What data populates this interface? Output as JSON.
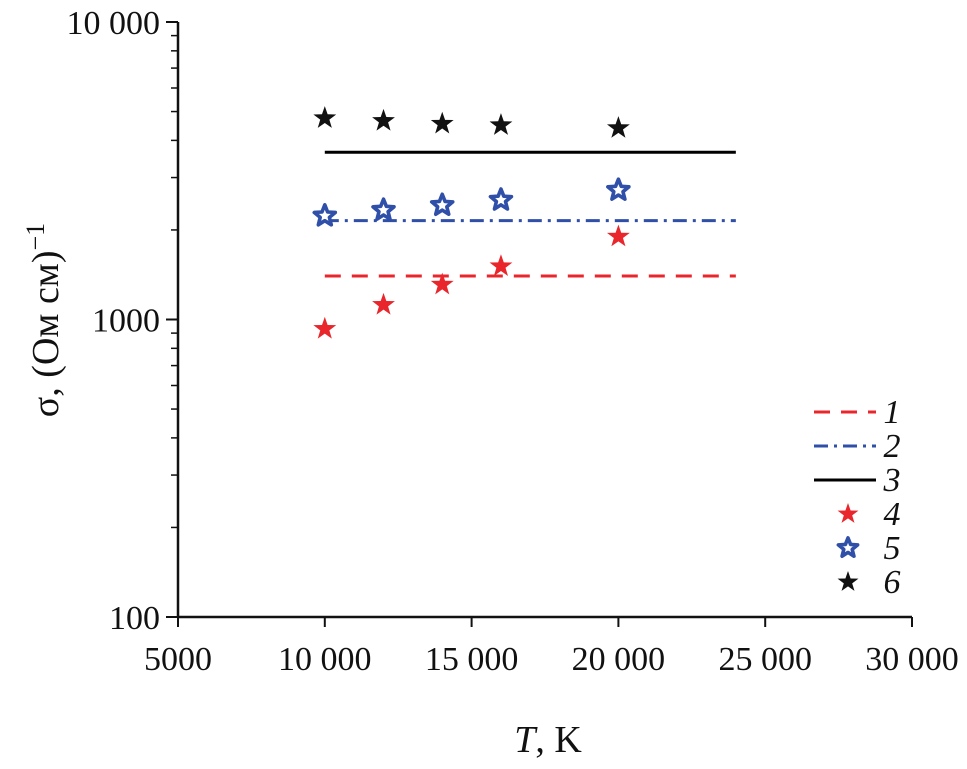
{
  "chart_data": {
    "type": "scatter",
    "xlabel_italic": "T",
    "xlabel_rest": ", K",
    "ylabel": "σ, (Ом см)",
    "ylabel_sup": "−1",
    "xlim": [
      5000,
      30000
    ],
    "ylim": [
      100,
      10000
    ],
    "yscale": "log",
    "grid": false,
    "legend_position": "bottom-right",
    "x_ticks": [
      5000,
      10000,
      15000,
      20000,
      25000,
      30000
    ],
    "x_tick_labels": [
      "5000",
      "10 000",
      "15 000",
      "20 000",
      "25 000",
      "30 000"
    ],
    "y_ticks": [
      100,
      1000,
      10000
    ],
    "y_tick_labels": [
      "100",
      "1000",
      "10 000"
    ],
    "series": [
      {
        "name": "1",
        "kind": "line",
        "style": "dashed",
        "color": "#e8262b",
        "x": [
          10000,
          24000
        ],
        "y": [
          1400,
          1400
        ]
      },
      {
        "name": "2",
        "kind": "line",
        "style": "dashdot",
        "color": "#2f4fa8",
        "x": [
          10000,
          24000
        ],
        "y": [
          2150,
          2150
        ]
      },
      {
        "name": "3",
        "kind": "line",
        "style": "solid",
        "color": "#000000",
        "x": [
          10000,
          24000
        ],
        "y": [
          3650,
          3650
        ]
      },
      {
        "name": "4",
        "kind": "marker",
        "marker": "star-filled",
        "color": "#e8262b",
        "x": [
          10000,
          12000,
          14000,
          16000,
          20000
        ],
        "y": [
          930,
          1120,
          1310,
          1510,
          1900
        ]
      },
      {
        "name": "5",
        "kind": "marker",
        "marker": "star-open",
        "color": "#2f4fa8",
        "x": [
          10000,
          12000,
          14000,
          16000,
          20000
        ],
        "y": [
          2230,
          2330,
          2420,
          2520,
          2720
        ]
      },
      {
        "name": "6",
        "kind": "marker",
        "marker": "star-filled",
        "color": "#111111",
        "x": [
          10000,
          12000,
          14000,
          16000,
          20000
        ],
        "y": [
          4750,
          4650,
          4550,
          4500,
          4400
        ]
      }
    ]
  }
}
